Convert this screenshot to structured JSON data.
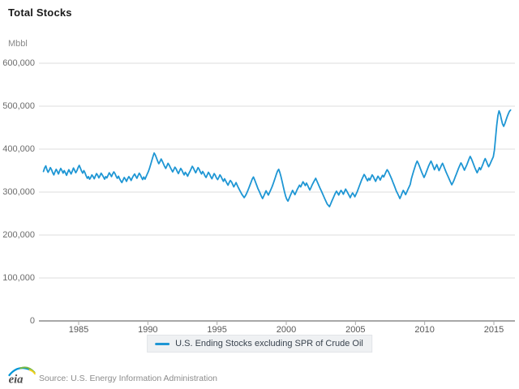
{
  "page": {
    "title": "Total Stocks",
    "unit": "Mbbl"
  },
  "legend": {
    "series_label": "U.S. Ending Stocks excluding SPR of Crude Oil"
  },
  "footer": {
    "logo_text": "eia",
    "source": "Source: U.S. Energy Information Administration"
  },
  "colors": {
    "line": "#1e96d4",
    "gridline": "#dcdcdc",
    "axis_line": "#a8a8a8",
    "tick_mark": "#a8a8a8",
    "legend_bg": "#eff1f3",
    "legend_text": "#39434e"
  },
  "chart_data": {
    "type": "line",
    "title": "Total Stocks",
    "xlabel": "",
    "ylabel": "Mbbl",
    "ylim": [
      0,
      600000
    ],
    "grid": true,
    "legend_position": "bottom",
    "yticks": [
      {
        "value": 0,
        "label": "0"
      },
      {
        "value": 100000,
        "label": "100,000"
      },
      {
        "value": 200000,
        "label": "200,000"
      },
      {
        "value": 300000,
        "label": "300,000"
      },
      {
        "value": 400000,
        "label": "400,000"
      },
      {
        "value": 500000,
        "label": "500,000"
      },
      {
        "value": 600000,
        "label": "600,000"
      }
    ],
    "xticks": [
      {
        "value": 1985,
        "label": "1985"
      },
      {
        "value": 1990,
        "label": "1990"
      },
      {
        "value": 1995,
        "label": "1995"
      },
      {
        "value": 2000,
        "label": "2000"
      },
      {
        "value": 2005,
        "label": "2005"
      },
      {
        "value": 2010,
        "label": "2010"
      },
      {
        "value": 2015,
        "label": "2015"
      }
    ],
    "series": [
      {
        "name": "U.S. Ending Stocks excluding SPR of Crude Oil",
        "color": "#1e96d4",
        "frequency": "monthly",
        "start_year": 1982.458,
        "x_step_years": 0.08333,
        "values": [
          348000,
          356000,
          361000,
          352000,
          346000,
          351000,
          357000,
          352000,
          345000,
          340000,
          347000,
          353000,
          348000,
          342000,
          349000,
          355000,
          350000,
          344000,
          350000,
          345000,
          339000,
          346000,
          352000,
          347000,
          342000,
          349000,
          356000,
          351000,
          345000,
          350000,
          357000,
          362000,
          356000,
          349000,
          344000,
          350000,
          345000,
          338000,
          332000,
          336000,
          330000,
          334000,
          340000,
          336000,
          331000,
          337000,
          343000,
          339000,
          333000,
          338000,
          344000,
          340000,
          335000,
          330000,
          336000,
          333000,
          339000,
          345000,
          341000,
          336000,
          342000,
          347000,
          343000,
          337000,
          332000,
          337000,
          331000,
          326000,
          322000,
          328000,
          334000,
          330000,
          325000,
          331000,
          336000,
          332000,
          327000,
          333000,
          338000,
          342000,
          337000,
          332000,
          338000,
          344000,
          340000,
          334000,
          329000,
          335000,
          330000,
          336000,
          342000,
          348000,
          356000,
          365000,
          374000,
          383000,
          391000,
          386000,
          379000,
          372000,
          366000,
          371000,
          377000,
          372000,
          366000,
          360000,
          355000,
          361000,
          367000,
          363000,
          357000,
          352000,
          347000,
          352000,
          358000,
          354000,
          348000,
          343000,
          349000,
          355000,
          351000,
          345000,
          340000,
          346000,
          342000,
          337000,
          343000,
          348000,
          354000,
          360000,
          356000,
          350000,
          345000,
          351000,
          357000,
          353000,
          347000,
          342000,
          348000,
          344000,
          338000,
          334000,
          340000,
          346000,
          342000,
          336000,
          331000,
          337000,
          343000,
          339000,
          333000,
          329000,
          334000,
          340000,
          336000,
          330000,
          325000,
          331000,
          326000,
          321000,
          316000,
          322000,
          327000,
          324000,
          318000,
          312000,
          317000,
          322000,
          316000,
          310000,
          305000,
          300000,
          295000,
          291000,
          287000,
          291000,
          296000,
          302000,
          309000,
          316000,
          323000,
          330000,
          335000,
          329000,
          322000,
          315000,
          308000,
          302000,
          296000,
          290000,
          285000,
          291000,
          297000,
          303000,
          298000,
          293000,
          299000,
          305000,
          311000,
          318000,
          326000,
          334000,
          342000,
          349000,
          353000,
          345000,
          335000,
          324000,
          312000,
          300000,
          290000,
          283000,
          279000,
          285000,
          292000,
          298000,
          304000,
          299000,
          294000,
          300000,
          306000,
          311000,
          316000,
          312000,
          318000,
          324000,
          320000,
          315000,
          321000,
          316000,
          310000,
          305000,
          311000,
          317000,
          322000,
          327000,
          332000,
          326000,
          320000,
          314000,
          308000,
          302000,
          296000,
          290000,
          284000,
          278000,
          272000,
          269000,
          266000,
          272000,
          279000,
          285000,
          291000,
          297000,
          302000,
          298000,
          293000,
          299000,
          304000,
          300000,
          295000,
          301000,
          307000,
          302000,
          297000,
          292000,
          287000,
          293000,
          298000,
          294000,
          289000,
          295000,
          301000,
          308000,
          315000,
          322000,
          329000,
          335000,
          341000,
          337000,
          331000,
          326000,
          332000,
          328000,
          334000,
          340000,
          336000,
          330000,
          325000,
          331000,
          337000,
          333000,
          328000,
          334000,
          339000,
          335000,
          341000,
          347000,
          352000,
          348000,
          342000,
          336000,
          330000,
          323000,
          316000,
          309000,
          302000,
          297000,
          291000,
          285000,
          291000,
          298000,
          304000,
          299000,
          294000,
          300000,
          306000,
          312000,
          318000,
          331000,
          340000,
          349000,
          358000,
          366000,
          372000,
          367000,
          360000,
          353000,
          346000,
          340000,
          334000,
          340000,
          347000,
          354000,
          361000,
          367000,
          372000,
          366000,
          359000,
          352000,
          358000,
          364000,
          357000,
          350000,
          356000,
          362000,
          367000,
          361000,
          354000,
          347000,
          341000,
          335000,
          329000,
          323000,
          317000,
          322000,
          328000,
          335000,
          342000,
          349000,
          356000,
          362000,
          368000,
          363000,
          357000,
          351000,
          357000,
          363000,
          370000,
          377000,
          383000,
          378000,
          371000,
          364000,
          357000,
          351000,
          345000,
          351000,
          357000,
          352000,
          358000,
          365000,
          372000,
          378000,
          372000,
          365000,
          359000,
          364000,
          370000,
          376000,
          382000,
          398000,
          426000,
          455000,
          478000,
          489000,
          482000,
          470000,
          459000,
          453000,
          459000,
          467000,
          475000,
          482000,
          488000,
          491000
        ]
      }
    ]
  }
}
